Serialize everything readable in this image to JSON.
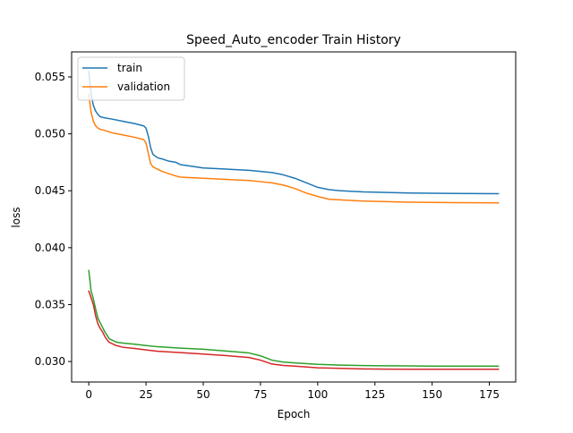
{
  "chart_data": {
    "type": "line",
    "title": "Speed_Auto_encoder Train History",
    "xlabel": "Epoch",
    "ylabel": "loss",
    "xlim": [
      -7.5,
      186.5
    ],
    "ylim": [
      0.0282,
      0.0572
    ],
    "xticks": [
      0,
      25,
      50,
      75,
      100,
      125,
      150,
      175
    ],
    "yticks": [
      0.03,
      0.035,
      0.04,
      0.045,
      0.05,
      0.055
    ],
    "ytick_labels": [
      "0.030",
      "0.035",
      "0.040",
      "0.045",
      "0.050",
      "0.055"
    ],
    "grid": false,
    "legend": {
      "placement": "upper-left",
      "entries": [
        "train",
        "validation"
      ]
    },
    "series": [
      {
        "name": "train",
        "color": "#1f77b4",
        "x": [
          0,
          1,
          2,
          3,
          4,
          5,
          7,
          10,
          15,
          20,
          24,
          25,
          26,
          27,
          28,
          30,
          32,
          35,
          38,
          40,
          50,
          60,
          70,
          75,
          80,
          85,
          90,
          95,
          100,
          105,
          110,
          120,
          130,
          140,
          150,
          160,
          170,
          179
        ],
        "y": [
          0.0555,
          0.0535,
          0.0525,
          0.052,
          0.0517,
          0.0515,
          0.0514,
          0.0513,
          0.0511,
          0.0509,
          0.0507,
          0.0505,
          0.0498,
          0.0488,
          0.0482,
          0.0479,
          0.0478,
          0.0476,
          0.0475,
          0.0473,
          0.047,
          0.0469,
          0.0468,
          0.0467,
          0.0466,
          0.0464,
          0.0461,
          0.0457,
          0.0453,
          0.0451,
          0.045,
          0.0449,
          0.04485,
          0.0448,
          0.04478,
          0.04476,
          0.04475,
          0.04474
        ]
      },
      {
        "name": "validation",
        "color": "#ff7f0e",
        "x": [
          0,
          1,
          2,
          3,
          4,
          5,
          7,
          10,
          15,
          20,
          24,
          25,
          26,
          27,
          28,
          30,
          32,
          35,
          38,
          40,
          50,
          60,
          70,
          75,
          80,
          85,
          90,
          95,
          100,
          105,
          110,
          120,
          130,
          140,
          150,
          160,
          170,
          179
        ],
        "y": [
          0.0535,
          0.0519,
          0.0511,
          0.0507,
          0.0505,
          0.0504,
          0.0503,
          0.0501,
          0.0499,
          0.0497,
          0.0495,
          0.0492,
          0.0483,
          0.0474,
          0.0471,
          0.0469,
          0.0467,
          0.0465,
          0.0463,
          0.0462,
          0.0461,
          0.046,
          0.0459,
          0.0458,
          0.0457,
          0.0455,
          0.0452,
          0.0448,
          0.0445,
          0.04425,
          0.0442,
          0.0441,
          0.04405,
          0.044,
          0.04398,
          0.04396,
          0.04395,
          0.04394
        ]
      },
      {
        "color": "#2ca02c",
        "x": [
          0,
          1,
          2,
          3,
          4,
          5,
          6,
          7,
          8,
          9,
          10,
          12,
          15,
          20,
          25,
          30,
          40,
          50,
          60,
          70,
          75,
          80,
          85,
          90,
          100,
          110,
          120,
          130,
          140,
          150,
          160,
          170,
          179
        ],
        "y": [
          0.038,
          0.0362,
          0.0355,
          0.0346,
          0.0338,
          0.0334,
          0.033,
          0.0326,
          0.0323,
          0.032,
          0.0319,
          0.0317,
          0.03162,
          0.03152,
          0.0314,
          0.0313,
          0.03118,
          0.03108,
          0.03092,
          0.03075,
          0.0305,
          0.03012,
          0.02995,
          0.02988,
          0.02975,
          0.02968,
          0.02964,
          0.02962,
          0.02961,
          0.0296,
          0.0296,
          0.0296,
          0.0296
        ]
      },
      {
        "color": "#d62728",
        "x": [
          0,
          1,
          2,
          3,
          4,
          5,
          6,
          7,
          8,
          9,
          10,
          12,
          15,
          20,
          25,
          30,
          40,
          50,
          60,
          70,
          75,
          80,
          85,
          90,
          100,
          110,
          120,
          130,
          140,
          150,
          160,
          170,
          179
        ],
        "y": [
          0.0362,
          0.0356,
          0.035,
          0.034,
          0.0333,
          0.0329,
          0.0326,
          0.0322,
          0.0319,
          0.03168,
          0.03158,
          0.0314,
          0.03125,
          0.03115,
          0.03102,
          0.0309,
          0.03078,
          0.03066,
          0.03052,
          0.03035,
          0.03012,
          0.02978,
          0.02965,
          0.0296,
          0.02945,
          0.0294,
          0.02935,
          0.02933,
          0.02932,
          0.02932,
          0.02932,
          0.02932,
          0.02932
        ]
      }
    ]
  }
}
